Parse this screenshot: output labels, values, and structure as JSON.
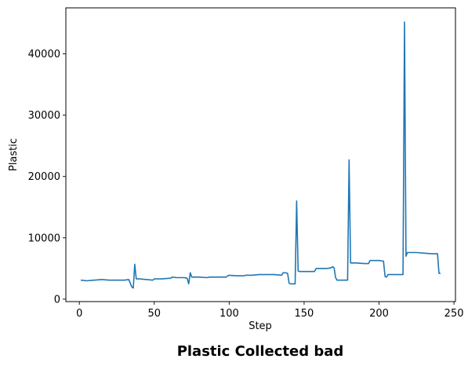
{
  "chart_data": {
    "type": "line",
    "title": "Plastic Collected bad",
    "xlabel": "Step",
    "ylabel": "Plastic",
    "xlim": [
      -9,
      251
    ],
    "ylim": [
      -400,
      47500
    ],
    "xticks": [
      0,
      50,
      100,
      150,
      200,
      250
    ],
    "yticks": [
      0,
      10000,
      20000,
      30000,
      40000
    ],
    "grid": false,
    "legend": "none",
    "line_color": "#1f77b4",
    "series": [
      {
        "x": [
          1,
          5,
          10,
          15,
          20,
          25,
          30,
          33,
          35,
          36,
          37,
          38,
          40,
          45,
          49,
          50,
          55,
          60,
          61,
          62,
          65,
          70,
          72,
          73,
          74,
          75,
          80,
          85,
          87,
          90,
          95,
          98,
          99,
          100,
          105,
          110,
          111,
          115,
          120,
          123,
          125,
          130,
          135,
          136,
          137,
          138,
          139,
          140,
          141,
          142,
          143,
          144,
          145,
          146,
          147,
          150,
          155,
          157,
          158,
          160,
          165,
          168,
          169,
          170,
          171,
          172,
          173,
          175,
          178,
          179,
          180,
          181,
          182,
          183,
          185,
          190,
          193,
          194,
          195,
          200,
          203,
          204,
          205,
          206,
          207,
          208,
          210,
          215,
          216,
          217,
          218,
          219,
          220,
          225,
          230,
          235,
          239,
          240,
          241
        ],
        "y": [
          3100,
          3000,
          3100,
          3200,
          3100,
          3100,
          3100,
          3200,
          2000,
          1800,
          5700,
          3300,
          3300,
          3200,
          3100,
          3300,
          3300,
          3400,
          3400,
          3600,
          3500,
          3500,
          3400,
          2500,
          4300,
          3600,
          3600,
          3500,
          3600,
          3600,
          3600,
          3600,
          3800,
          3900,
          3800,
          3800,
          3900,
          3900,
          4000,
          4000,
          4000,
          4000,
          3900,
          4300,
          4300,
          4300,
          4200,
          2600,
          2500,
          2500,
          2500,
          2500,
          16000,
          4600,
          4500,
          4500,
          4500,
          4500,
          5000,
          5000,
          5000,
          5100,
          5300,
          5100,
          3500,
          3100,
          3100,
          3100,
          3100,
          3100,
          22700,
          5900,
          5900,
          5900,
          5900,
          5800,
          5800,
          6300,
          6300,
          6300,
          6200,
          3700,
          3600,
          4000,
          4000,
          4000,
          4000,
          4000,
          4000,
          45200,
          7000,
          7600,
          7600,
          7600,
          7500,
          7400,
          7400,
          4200,
          4200
        ]
      }
    ]
  }
}
